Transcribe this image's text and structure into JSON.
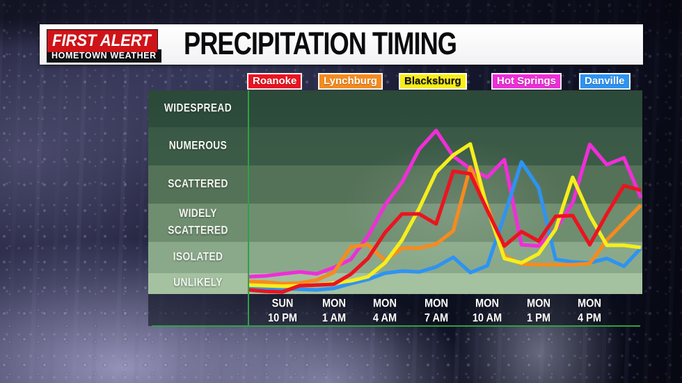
{
  "header": {
    "brand_line1": "FIRST ALERT",
    "brand_line2": "HOMETOWN WEATHER",
    "title": "PRECIPITATION TIMING"
  },
  "legend": [
    {
      "label": "Roanoke",
      "bg": "#ea1420",
      "text": "#ffffff"
    },
    {
      "label": "Lynchburg",
      "bg": "#f68b1e",
      "text": "#ffffff"
    },
    {
      "label": "Blacksburg",
      "bg": "#f6ee1c",
      "text": "#101010"
    },
    {
      "label": "Hot Springs",
      "bg": "#ef2ed8",
      "text": "#ffffff"
    },
    {
      "label": "Danville",
      "bg": "#2e93f2",
      "text": "#ffffff"
    }
  ],
  "chart_data": {
    "type": "line",
    "title": "Precipitation Timing",
    "y_axis": {
      "labels": [
        "WIDESPREAD",
        "NUMEROUS",
        "SCATTERED",
        "WIDELY\nSCATTERED",
        "ISOLATED",
        "UNLIKELY"
      ],
      "band_colors": [
        "#2f4f3e",
        "#3b5b47",
        "#547257",
        "#6f8e70",
        "#8aa98a",
        "#a4c1a0"
      ],
      "scale_note": "series values are coverage levels 0-6; 0 = bottom of UNLIKELY, each integer step = next band boundary upward"
    },
    "x_axis": {
      "start": "SUN 8 PM",
      "interval_hours": 1,
      "points_per_series": 24,
      "ticks": [
        {
          "day": "SUN",
          "time": "10 PM"
        },
        {
          "day": "MON",
          "time": "1 AM"
        },
        {
          "day": "MON",
          "time": "4 AM"
        },
        {
          "day": "MON",
          "time": "7 AM"
        },
        {
          "day": "MON",
          "time": "10 AM"
        },
        {
          "day": "MON",
          "time": "1 PM"
        },
        {
          "day": "MON",
          "time": "4 PM"
        }
      ],
      "tick_indices": [
        2,
        5,
        8,
        11,
        14,
        17,
        20
      ]
    },
    "axis_color": "#2da342",
    "series": [
      {
        "name": "Hot Springs",
        "color": "#ef2ed8",
        "values": [
          0.83,
          0.87,
          0.97,
          1.04,
          0.97,
          1.18,
          1.44,
          2.15,
          2.96,
          3.56,
          4.42,
          4.91,
          4.24,
          3.91,
          3.69,
          4.15,
          1.91,
          1.87,
          2.33,
          3.02,
          4.55,
          4.02,
          4.2,
          3.15
        ]
      },
      {
        "name": "Danville",
        "color": "#2e93f2",
        "values": [
          0.33,
          0.3,
          0.27,
          0.23,
          0.2,
          0.27,
          0.5,
          0.7,
          1.0,
          1.07,
          1.04,
          1.2,
          1.51,
          1.02,
          1.24,
          2.69,
          4.09,
          3.42,
          1.44,
          1.36,
          1.33,
          1.47,
          1.22,
          1.8
        ]
      },
      {
        "name": "Lynchburg",
        "color": "#f68b1e",
        "values": [
          0.6,
          0.57,
          0.5,
          0.53,
          0.67,
          1.02,
          1.84,
          1.91,
          1.4,
          1.8,
          1.8,
          1.93,
          2.29,
          3.96,
          2.96,
          1.56,
          1.29,
          1.27,
          1.27,
          1.27,
          1.31,
          2.05,
          2.51,
          2.96
        ]
      },
      {
        "name": "Blacksburg",
        "color": "#f6ee1c",
        "values": [
          0.43,
          0.4,
          0.37,
          0.4,
          0.43,
          0.53,
          0.63,
          0.83,
          1.33,
          2.05,
          2.87,
          3.82,
          4.27,
          4.56,
          2.87,
          1.47,
          1.33,
          1.62,
          2.33,
          3.69,
          2.69,
          1.89,
          1.89,
          1.82
        ]
      },
      {
        "name": "Roanoke",
        "color": "#ea1420",
        "values": [
          0.2,
          0.13,
          0.1,
          0.4,
          0.43,
          0.47,
          0.95,
          1.47,
          2.24,
          2.73,
          2.73,
          2.47,
          3.85,
          3.78,
          2.82,
          1.87,
          2.27,
          2.02,
          2.67,
          2.69,
          1.91,
          2.73,
          3.47,
          3.35
        ]
      }
    ]
  }
}
